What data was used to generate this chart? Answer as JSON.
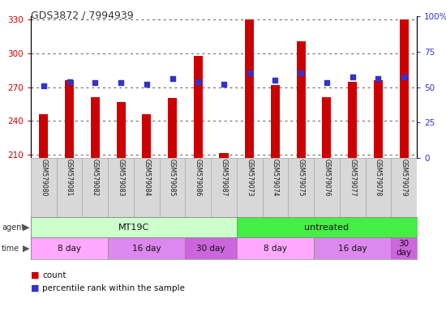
{
  "title": "GDS3872 / 7994939",
  "samples": [
    "GSM579080",
    "GSM579081",
    "GSM579082",
    "GSM579083",
    "GSM579084",
    "GSM579085",
    "GSM579086",
    "GSM579087",
    "GSM579073",
    "GSM579074",
    "GSM579075",
    "GSM579076",
    "GSM579077",
    "GSM579078",
    "GSM579079"
  ],
  "counts": [
    246,
    276,
    261,
    257,
    246,
    260,
    298,
    211,
    330,
    272,
    311,
    261,
    275,
    276,
    330
  ],
  "percentiles": [
    51,
    54,
    53,
    53,
    52,
    56,
    54,
    52,
    60,
    55,
    60,
    53,
    57,
    56,
    57
  ],
  "ylim_left": [
    207,
    333
  ],
  "ylim_right": [
    0,
    100
  ],
  "yticks_left": [
    210,
    240,
    270,
    300,
    330
  ],
  "yticks_right": [
    0,
    25,
    50,
    75,
    100
  ],
  "bar_color": "#cc0000",
  "dot_color": "#3333cc",
  "bar_bottom": 207,
  "agent_groups": [
    {
      "label": "MT19C",
      "start": 0,
      "end": 7,
      "color": "#ccffcc"
    },
    {
      "label": "untreated",
      "start": 8,
      "end": 14,
      "color": "#44ee44"
    }
  ],
  "time_groups": [
    {
      "label": "8 day",
      "start": 0,
      "end": 2,
      "color": "#ffaaff"
    },
    {
      "label": "16 day",
      "start": 3,
      "end": 5,
      "color": "#dd88ee"
    },
    {
      "label": "30 day",
      "start": 6,
      "end": 7,
      "color": "#cc66dd"
    },
    {
      "label": "8 day",
      "start": 8,
      "end": 10,
      "color": "#ffaaff"
    },
    {
      "label": "16 day",
      "start": 11,
      "end": 13,
      "color": "#dd88ee"
    },
    {
      "label": "30\nday",
      "start": 14,
      "end": 14,
      "color": "#cc66dd"
    }
  ],
  "legend_count_color": "#cc0000",
  "legend_dot_color": "#3333cc",
  "bg_color": "#ffffff",
  "tick_label_color_left": "#cc0000",
  "tick_label_color_right": "#3333cc"
}
